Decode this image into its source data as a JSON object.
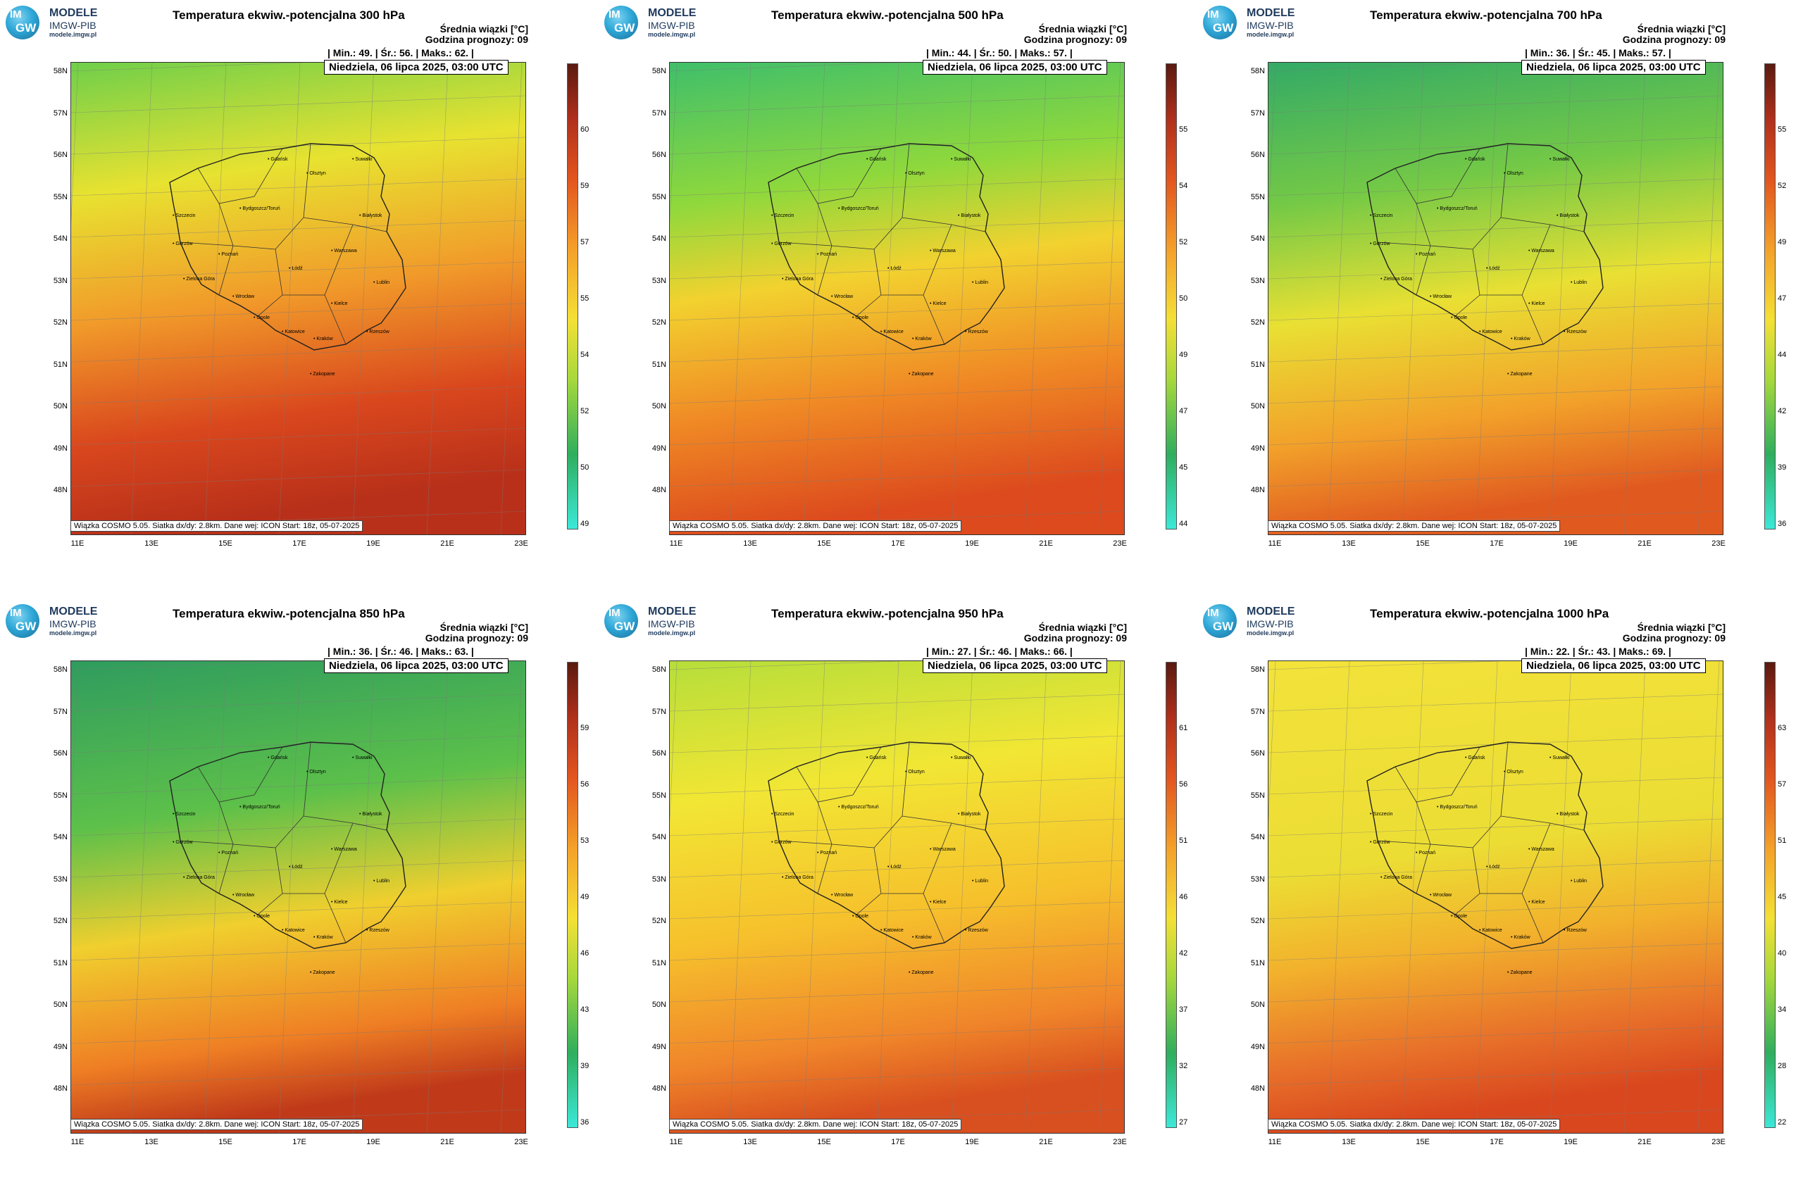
{
  "logo": {
    "line1": "MODELE",
    "line2": "IMGW-PIB",
    "line3": "modele.imgw.pl",
    "badge_top": "IM",
    "badge_bottom": "GW"
  },
  "common": {
    "legend_line1": "Średnia wiązki [°C]",
    "legend_line2": "Godzina prognozy: 09",
    "date": "Niedziela, 06 lipca 2025, 03:00 UTC",
    "footer": "Wiązka COSMO 5.05. Siatka dx/dy: 2.8km. Dane wej: ICON Start: 18z, 05-07-2025",
    "lat_labels": [
      "58N",
      "57N",
      "56N",
      "55N",
      "54N",
      "53N",
      "52N",
      "51N",
      "50N",
      "49N",
      "48N"
    ],
    "lon_labels": [
      "11E",
      "13E",
      "15E",
      "17E",
      "19E",
      "21E",
      "23E"
    ],
    "cities": [
      "Gdańsk",
      "Olsztyn",
      "Suwałki",
      "Szczecin",
      "Bydgoszcz/Toruń",
      "Białystok",
      "Gorzów",
      "Poznań",
      "Warszawa",
      "Zielona Góra",
      "Łódź",
      "Lublin",
      "Wrocław",
      "Opole",
      "Kielce",
      "Katowice",
      "Kraków",
      "Rzeszów",
      "Zakopane"
    ]
  },
  "panels": [
    {
      "title": "Temperatura ekwiw.-potencjalna 300 hPa",
      "stats": "| Min.:    49. | Śr.:    56. | Maks.:    62. |",
      "colorbar": [
        "60",
        "59",
        "57",
        "55",
        "54",
        "52",
        "50",
        "49"
      ],
      "field": "p300"
    },
    {
      "title": "Temperatura ekwiw.-potencjalna 500 hPa",
      "stats": "| Min.:    44. | Śr.:    50. | Maks.:    57. |",
      "colorbar": [
        "55",
        "54",
        "52",
        "50",
        "49",
        "47",
        "45",
        "44"
      ],
      "field": "p500"
    },
    {
      "title": "Temperatura ekwiw.-potencjalna 700 hPa",
      "stats": "| Min.:    36. | Śr.:    45. | Maks.:    57. |",
      "colorbar": [
        "55",
        "52",
        "49",
        "47",
        "44",
        "42",
        "39",
        "36"
      ],
      "field": "p700"
    },
    {
      "title": "Temperatura ekwiw.-potencjalna 850 hPa",
      "stats": "| Min.:    36. | Śr.:    46. | Maks.:    63. |",
      "colorbar": [
        "59",
        "56",
        "53",
        "49",
        "46",
        "43",
        "39",
        "36"
      ],
      "field": "p850"
    },
    {
      "title": "Temperatura ekwiw.-potencjalna 950 hPa",
      "stats": "| Min.:    27. | Śr.:    46. | Maks.:    66. |",
      "colorbar": [
        "61",
        "56",
        "51",
        "46",
        "42",
        "37",
        "32",
        "27"
      ],
      "field": "p950"
    },
    {
      "title": "Temperatura ekwiw.-potencjalna 1000 hPa",
      "stats": "| Min.:    22. | Śr.:    43. | Maks.:    69. |",
      "colorbar": [
        "63",
        "57",
        "51",
        "45",
        "40",
        "34",
        "28",
        "22"
      ],
      "field": "p1000"
    }
  ]
}
